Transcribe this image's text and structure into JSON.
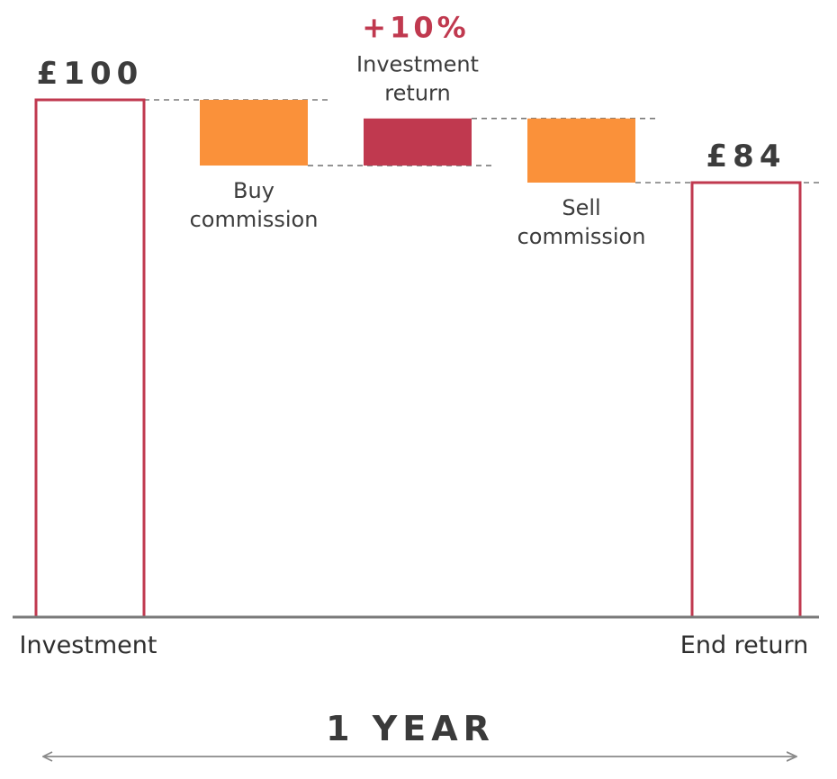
{
  "chart_data": {
    "type": "waterfall",
    "unit": "£",
    "ylim": [
      0,
      100
    ],
    "colors": {
      "outline": "#c0394f",
      "commission": "#fa913a",
      "return": "#c0394f",
      "baseline": "#7a7a7a",
      "guide": "#7a7a7a",
      "text": "#3c3c3c",
      "arrow": "#8a8a8a"
    },
    "steps": [
      {
        "key": "investment",
        "kind": "total",
        "start": 0,
        "end": 100,
        "value_label": "£100",
        "label": "Investment"
      },
      {
        "key": "buy",
        "kind": "decrease",
        "start": 100,
        "end": 87.3,
        "label": "Buy commission",
        "label_lines": [
          "Buy",
          "commission"
        ]
      },
      {
        "key": "return",
        "kind": "increase",
        "start": 87.3,
        "end": 96.4,
        "pct_label": "+10%",
        "label": "Investment return",
        "label_lines": [
          "Investment",
          "return"
        ]
      },
      {
        "key": "sell",
        "kind": "decrease",
        "start": 96.4,
        "end": 84,
        "label": "Sell commission",
        "label_lines": [
          "Sell",
          "commission"
        ]
      },
      {
        "key": "end",
        "kind": "total",
        "start": 0,
        "end": 84,
        "value_label": "£84",
        "label": "End return"
      }
    ],
    "period_label": "1 YEAR"
  }
}
